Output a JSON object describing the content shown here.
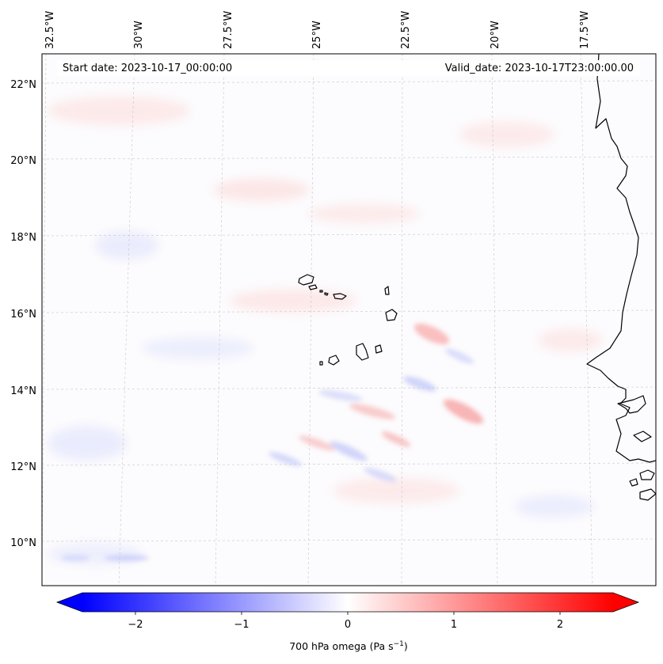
{
  "map": {
    "start_date": "Start date: 2023-10-17_00:00:00",
    "valid_date": "Valid_date: 2023-10-17T23:00:00.00",
    "lon_labels": [
      "32.5°W",
      "30°W",
      "27.5°W",
      "25°W",
      "22.5°W",
      "20°W",
      "17.5°W"
    ],
    "lat_labels": [
      "22°N",
      "20°N",
      "18°N",
      "16°N",
      "14°N",
      "12°N",
      "10°N"
    ],
    "colorbar": {
      "ticks": [
        "−2",
        "−1",
        "0",
        "1",
        "2"
      ],
      "label_main": "700 hPa omega (Pa s",
      "label_sup": "−1",
      "label_end": ")",
      "range": [
        -2.5,
        2.5
      ],
      "cmap": "bwr"
    },
    "colors": {
      "negative": "#0000ff",
      "positive": "#ff0000",
      "coastline": "#000000",
      "gridline": "#bbbbbb"
    }
  }
}
